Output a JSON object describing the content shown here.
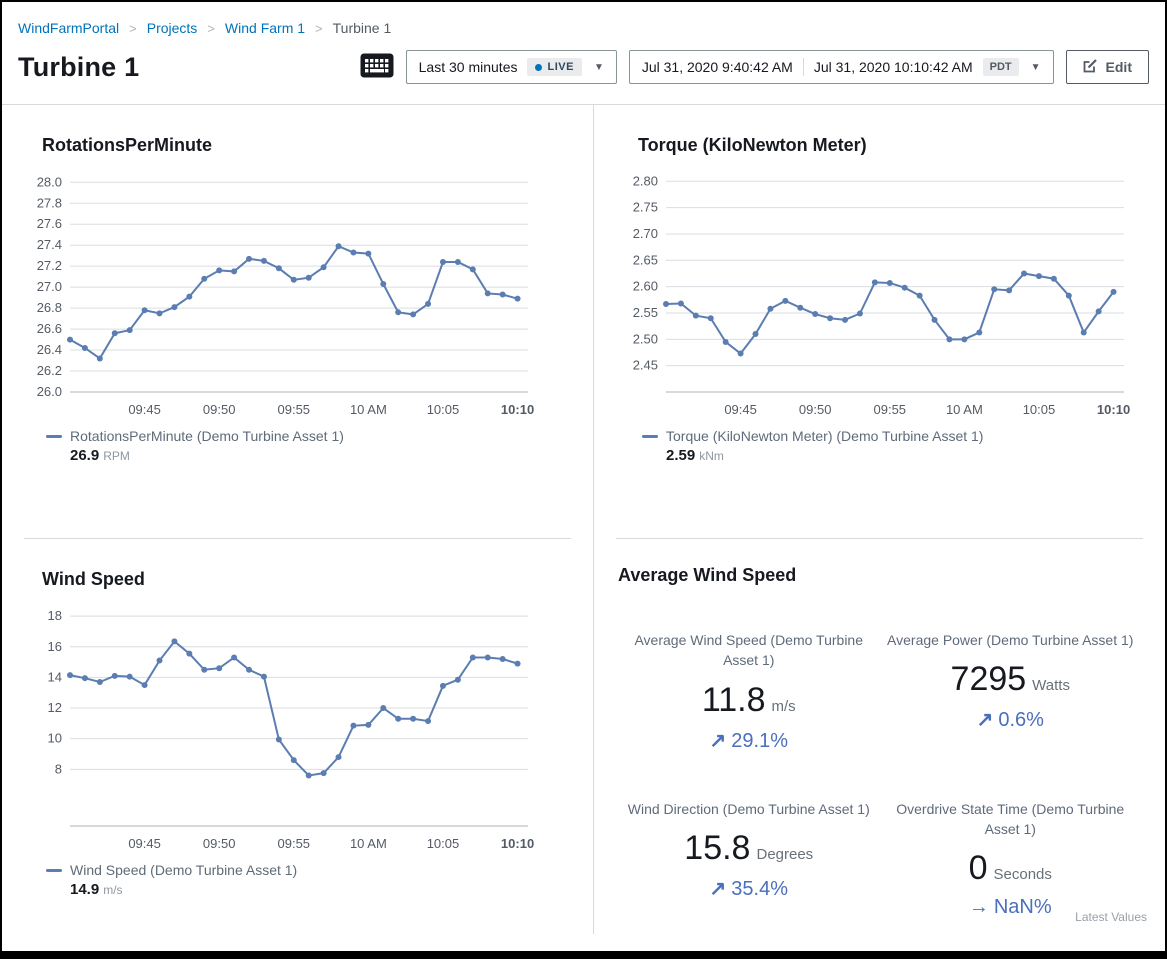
{
  "page": {
    "breadcrumb": {
      "items": [
        {
          "label": "WindFarmPortal"
        },
        {
          "label": "Projects"
        },
        {
          "label": "Wind Farm 1"
        },
        {
          "label": "Turbine 1"
        }
      ]
    },
    "title": "Turbine 1",
    "toolbar": {
      "time_range_label": "Last 30 minutes",
      "live_badge": "LIVE",
      "start_time": "Jul 31, 2020 9:40:42 AM",
      "end_time": "Jul 31, 2020 10:10:42 AM",
      "timezone_badge": "PDT",
      "edit_label": "Edit"
    }
  },
  "colors": {
    "link_blue": "#0073bb",
    "chart_line": "#5b7db1",
    "trend_blue": "#4a6fbd",
    "gridline": "#d9dde2",
    "axis_line": "#aab4bc",
    "tick_text": "#545b64"
  },
  "chart_data": [
    {
      "id": "rotations-per-minute",
      "type": "line",
      "title": "RotationsPerMinute",
      "xlabel": "",
      "ylabel": "",
      "x_times": [
        "09:40",
        "09:41",
        "09:42",
        "09:43",
        "09:44",
        "09:45",
        "09:46",
        "09:47",
        "09:48",
        "09:49",
        "09:50",
        "09:51",
        "09:52",
        "09:53",
        "09:54",
        "09:55",
        "09:56",
        "09:57",
        "09:58",
        "09:59",
        "10:00",
        "10:01",
        "10:02",
        "10:03",
        "10:04",
        "10:05",
        "10:06",
        "10:07",
        "10:08",
        "10:09",
        "10:10"
      ],
      "series": [
        {
          "name": "RotationsPerMinute (Demo Turbine Asset 1)",
          "values": [
            26.5,
            26.42,
            26.32,
            26.56,
            26.59,
            26.78,
            26.75,
            26.81,
            26.91,
            27.08,
            27.16,
            27.15,
            27.27,
            27.25,
            27.18,
            27.07,
            27.09,
            27.19,
            27.39,
            27.33,
            27.32,
            27.03,
            26.76,
            26.74,
            26.84,
            27.24,
            27.24,
            27.17,
            26.94,
            26.93,
            26.89
          ]
        }
      ],
      "ylim": [
        26.0,
        28.06
      ],
      "yticks": [
        26.0,
        26.2,
        26.4,
        26.6,
        26.8,
        27.0,
        27.2,
        27.4,
        27.6,
        27.8,
        28.0
      ],
      "ytick_labels": [
        "26.0",
        "26.2",
        "26.4",
        "26.6",
        "26.8",
        "27.0",
        "27.2",
        "27.4",
        "27.6",
        "27.8",
        "28.0"
      ],
      "x_tick_indices": [
        5,
        10,
        15,
        20,
        25,
        30
      ],
      "x_tick_labels": [
        "09:45",
        "09:50",
        "09:55",
        "10 AM",
        "10:05",
        "10:10"
      ],
      "x_axis_span": 30.7,
      "legend": {
        "label": "RotationsPerMinute (Demo Turbine Asset 1)",
        "latest_value": "26.9",
        "unit": "RPM"
      }
    },
    {
      "id": "torque",
      "type": "line",
      "title": "Torque (KiloNewton Meter)",
      "xlabel": "",
      "ylabel": "",
      "x_times": [
        "09:40",
        "09:41",
        "09:42",
        "09:43",
        "09:44",
        "09:45",
        "09:46",
        "09:47",
        "09:48",
        "09:49",
        "09:50",
        "09:51",
        "09:52",
        "09:53",
        "09:54",
        "09:55",
        "09:56",
        "09:57",
        "09:58",
        "09:59",
        "10:00",
        "10:01",
        "10:02",
        "10:03",
        "10:04",
        "10:05",
        "10:06",
        "10:07",
        "10:08",
        "10:09",
        "10:10"
      ],
      "series": [
        {
          "name": "Torque (KiloNewton Meter) (Demo Turbine Asset 1)",
          "values": [
            2.567,
            2.568,
            2.545,
            2.54,
            2.495,
            2.473,
            2.51,
            2.558,
            2.573,
            2.56,
            2.548,
            2.54,
            2.537,
            2.549,
            2.608,
            2.607,
            2.598,
            2.583,
            2.537,
            2.5,
            2.5,
            2.513,
            2.595,
            2.593,
            2.625,
            2.62,
            2.615,
            2.583,
            2.513,
            2.553,
            2.59
          ]
        }
      ],
      "ylim": [
        2.4,
        2.81
      ],
      "yticks": [
        2.45,
        2.5,
        2.55,
        2.6,
        2.65,
        2.7,
        2.75,
        2.8
      ],
      "ytick_labels": [
        "2.45",
        "2.50",
        "2.55",
        "2.60",
        "2.65",
        "2.70",
        "2.75",
        "2.80"
      ],
      "x_tick_indices": [
        5,
        10,
        15,
        20,
        25,
        30
      ],
      "x_tick_labels": [
        "09:45",
        "09:50",
        "09:55",
        "10 AM",
        "10:05",
        "10:10"
      ],
      "x_axis_span": 30.7,
      "legend": {
        "label": "Torque (KiloNewton Meter) (Demo Turbine Asset 1)",
        "latest_value": "2.59",
        "unit": "kNm"
      }
    },
    {
      "id": "wind-speed",
      "type": "line",
      "title": "Wind Speed",
      "xlabel": "",
      "ylabel": "",
      "x_times": [
        "09:40",
        "09:41",
        "09:42",
        "09:43",
        "09:44",
        "09:45",
        "09:46",
        "09:47",
        "09:48",
        "09:49",
        "09:50",
        "09:51",
        "09:52",
        "09:53",
        "09:54",
        "09:55",
        "09:56",
        "09:57",
        "09:58",
        "09:59",
        "10:00",
        "10:01",
        "10:02",
        "10:03",
        "10:04",
        "10:05",
        "10:06",
        "10:07",
        "10:08",
        "10:09",
        "10:10"
      ],
      "series": [
        {
          "name": "Wind Speed (Demo Turbine Asset 1)",
          "values": [
            14.15,
            13.95,
            13.7,
            14.1,
            14.05,
            13.5,
            15.1,
            16.35,
            15.55,
            14.5,
            14.6,
            15.3,
            14.5,
            14.05,
            9.95,
            8.6,
            7.6,
            7.75,
            8.8,
            10.85,
            10.9,
            12.0,
            11.3,
            11.3,
            11.15,
            13.45,
            13.85,
            15.3,
            15.3,
            15.2,
            14.9
          ]
        }
      ],
      "ylim": [
        4.3,
        18.4
      ],
      "yticks": [
        8,
        10,
        12,
        14,
        16,
        18
      ],
      "ytick_labels": [
        "8",
        "10",
        "12",
        "14",
        "16",
        "18"
      ],
      "x_tick_indices": [
        5,
        10,
        15,
        20,
        25,
        30
      ],
      "x_tick_labels": [
        "09:45",
        "09:50",
        "09:55",
        "10 AM",
        "10:05",
        "10:10"
      ],
      "x_axis_span": 30.7,
      "legend": {
        "label": "Wind Speed (Demo Turbine Asset 1)",
        "latest_value": "14.9",
        "unit": "m/s"
      }
    }
  ],
  "kpi_panel": {
    "title": "Average Wind Speed",
    "kpis": [
      {
        "label": "Average Wind Speed (Demo Turbine Asset 1)",
        "value": "11.8",
        "unit": "m/s",
        "trend": "29.1%",
        "trend_dir": "up"
      },
      {
        "label": "Average Power (Demo Turbine Asset 1)",
        "value": "7295",
        "unit": "Watts",
        "trend": "0.6%",
        "trend_dir": "up"
      },
      {
        "label": "Wind Direction (Demo Turbine Asset 1)",
        "value": "15.8",
        "unit": "Degrees",
        "trend": "35.4%",
        "trend_dir": "up"
      },
      {
        "label": "Overdrive State Time (Demo Turbine Asset 1)",
        "value": "0",
        "unit": "Seconds",
        "trend": "NaN%",
        "trend_dir": "flat"
      }
    ],
    "footer": "Latest Values"
  }
}
